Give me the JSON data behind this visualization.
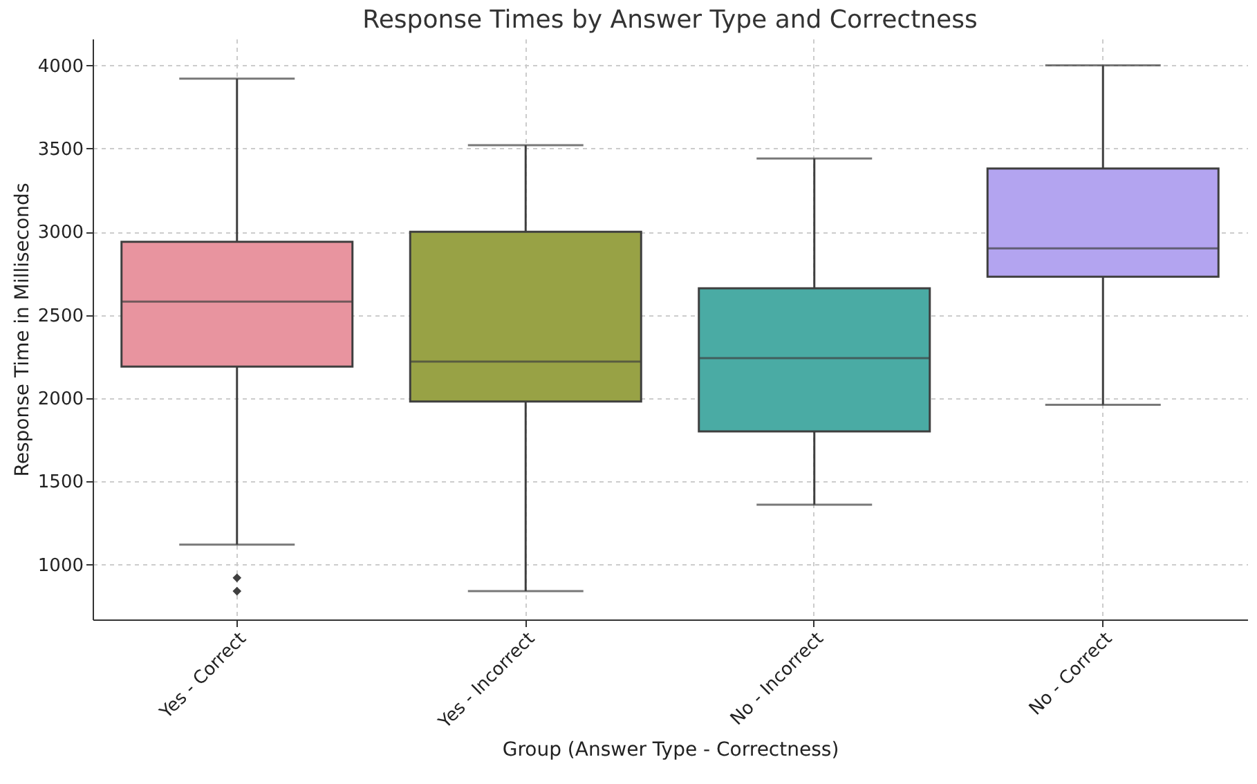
{
  "chart_data": {
    "type": "box",
    "title": "Response Times by Answer Type and Correctness",
    "xlabel": "Group (Answer Type - Correctness)",
    "ylabel": "Response Time in Milliseconds",
    "categories": [
      "Yes - Correct",
      "Yes - Incorrect",
      "No - Incorrect",
      "No - Correct"
    ],
    "colors": [
      "#e8949f",
      "#98a245",
      "#4aaba4",
      "#b3a4f0"
    ],
    "boxes": [
      {
        "low": 1120,
        "q1": 2190,
        "median": 2580,
        "q3": 2940,
        "high": 3920,
        "outliers": [
          920,
          840
        ]
      },
      {
        "low": 840,
        "q1": 1980,
        "median": 2220,
        "q3": 3000,
        "high": 3520
      },
      {
        "low": 1360,
        "q1": 1800,
        "median": 2240,
        "q3": 2660,
        "high": 3440
      },
      {
        "low": 1960,
        "q1": 2730,
        "median": 2900,
        "q3": 3380,
        "high": 4000
      }
    ],
    "ylim": [
      670,
      4160
    ],
    "yticks": [
      1000,
      1500,
      2000,
      2500,
      3000,
      3500,
      4000
    ],
    "grid": true,
    "marker": "diamond"
  }
}
